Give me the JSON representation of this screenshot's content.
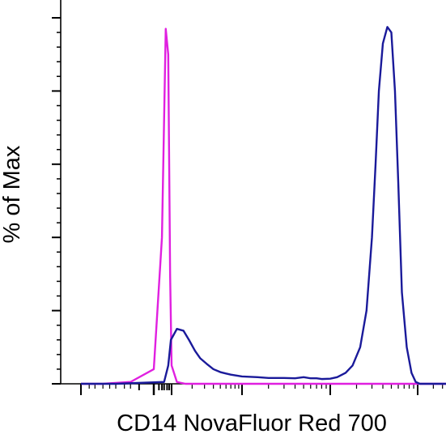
{
  "chart_data": {
    "type": "line",
    "xlabel": "CD14 NovaFluor Red 700",
    "ylabel": "% of Max",
    "xlim": [
      -300,
      350000
    ],
    "ylim": [
      0,
      100
    ],
    "x_scale": "biexponential",
    "grid": false,
    "series": [
      {
        "color": "#e020e0",
        "points": [
          [
            -300,
            0
          ],
          [
            -100,
            0
          ],
          [
            -20,
            0.5
          ],
          [
            0,
            4
          ],
          [
            20,
            40
          ],
          [
            40,
            97
          ],
          [
            60,
            90
          ],
          [
            80,
            30
          ],
          [
            100,
            5
          ],
          [
            120,
            0.5
          ],
          [
            160,
            0
          ],
          [
            1000,
            0
          ],
          [
            10000,
            0
          ],
          [
            100000,
            0
          ],
          [
            350000,
            0
          ]
        ]
      },
      {
        "color": "#1a1a9a",
        "points": [
          [
            -300,
            0
          ],
          [
            -50,
            0
          ],
          [
            30,
            0.5
          ],
          [
            60,
            5
          ],
          [
            90,
            12
          ],
          [
            120,
            15
          ],
          [
            150,
            14.5
          ],
          [
            180,
            12
          ],
          [
            220,
            9
          ],
          [
            260,
            7
          ],
          [
            320,
            5.5
          ],
          [
            400,
            4
          ],
          [
            500,
            3.2
          ],
          [
            600,
            2.8
          ],
          [
            700,
            2.5
          ],
          [
            1000,
            2
          ],
          [
            1500,
            1.8
          ],
          [
            2000,
            1.6
          ],
          [
            3000,
            1.6
          ],
          [
            4000,
            1.5
          ],
          [
            5000,
            1.8
          ],
          [
            6000,
            1.5
          ],
          [
            7000,
            1.5
          ],
          [
            8000,
            1.3
          ],
          [
            10000,
            1.4
          ],
          [
            12000,
            1.8
          ],
          [
            15000,
            3
          ],
          [
            18000,
            5
          ],
          [
            22000,
            10
          ],
          [
            26000,
            20
          ],
          [
            30000,
            40
          ],
          [
            33000,
            60
          ],
          [
            36000,
            80
          ],
          [
            40000,
            93
          ],
          [
            45000,
            97.5
          ],
          [
            50000,
            96
          ],
          [
            55000,
            80
          ],
          [
            60000,
            55
          ],
          [
            66000,
            25
          ],
          [
            75000,
            10
          ],
          [
            85000,
            3
          ],
          [
            95000,
            0.5
          ],
          [
            110000,
            0
          ],
          [
            200000,
            0
          ],
          [
            350000,
            0
          ]
        ]
      }
    ]
  }
}
